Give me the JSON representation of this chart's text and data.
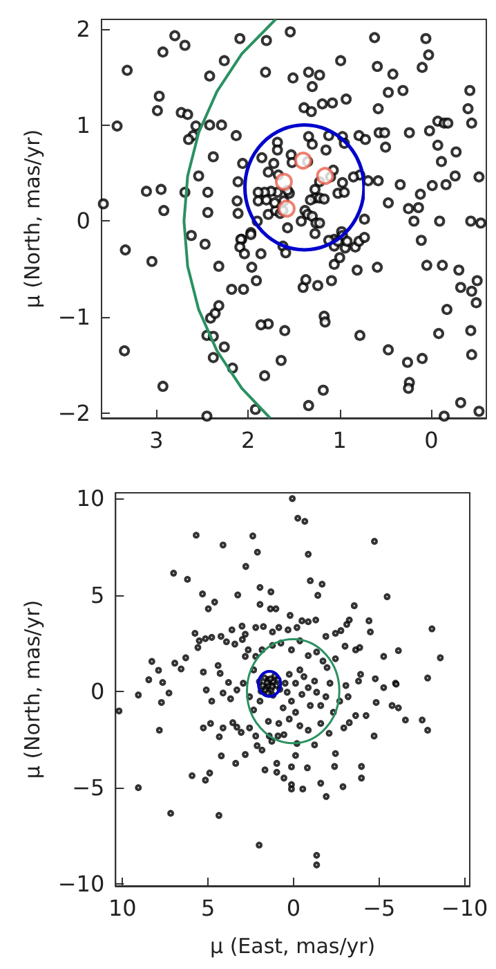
{
  "chart_data": [
    {
      "type": "scatter",
      "ylabel": "μ (North, mas/yr)",
      "xlim": [
        3.6,
        -0.6
      ],
      "ylim": [
        -2.05,
        2.1
      ],
      "xticks": [
        3,
        2,
        1,
        0
      ],
      "yticks": [
        -2,
        -1,
        0,
        1,
        2
      ],
      "grid": false,
      "marker": "circle",
      "series": [
        {
          "color": "#000000",
          "x": [
            2.8,
            2.93,
            2.69,
            3.32,
            2.09,
            1.8,
            1.54,
            0.62,
            0.06,
            0.03,
            0.1,
            0.99,
            2.26,
            2.42,
            1.81,
            1.51,
            1.34,
            1.22,
            1.3,
            0.59,
            0.42,
            0.31,
            0.47,
            0.58,
            0.93,
            1.08,
            1.19,
            1.39,
            1.31,
            -0.42,
            -0.4,
            2.97,
            2.99,
            2.73,
            2.66,
            2.29,
            2.42,
            2.57,
            2.6,
            2.65,
            3.43,
            2.13,
            2.38,
            2.54,
            3.11,
            2.95,
            2.69,
            2.92,
            2.44,
            2.44,
            3.58,
            2.06,
            2.11,
            2.12,
            2.11,
            1.85,
            1.68,
            1.68,
            1.72,
            1.78,
            1.67,
            1.53,
            1.52,
            1.35,
            1.34,
            1.3,
            1.15,
            1.12,
            0.97,
            0.95,
            0.79,
            0.72,
            0.57,
            0.51,
            0.5,
            0.24,
            0.02,
            -0.07,
            -0.14,
            -0.18,
            -0.44,
            -0.07,
            -0.27,
            -0.11,
            -0.01,
            -0.16,
            -0.26,
            -0.52,
            0.12,
            0.34,
            0.58,
            0.47,
            0.25,
            0.14,
            0.19,
            -0.09,
            -0.43,
            -0.54,
            0.73,
            0.69,
            0.78,
            0.85,
            0.97,
            1.02,
            0.95,
            1.07,
            1.1,
            1.22,
            1.27,
            1.27,
            1.22,
            1.17,
            1.32,
            1.38,
            1.35,
            1.3,
            1.26,
            1.22,
            1.42,
            1.57,
            1.78,
            1.7,
            1.65,
            1.62,
            1.55,
            1.57,
            1.68,
            1.75,
            1.82,
            1.89,
            1.89,
            1.8,
            1.71,
            1.61,
            1.9,
            1.97,
            0.98,
            0.97,
            1.06,
            1.12,
            2.07,
            2.62,
            2.47,
            2.08,
            2.09,
            2.04,
            1.97,
            1.86,
            1.62,
            1.59,
            1.27,
            1.06,
            1.02,
            0.94,
            0.92,
            0.83,
            0.79,
            0.73,
            1.06,
            1.0,
            0.81,
            0.59,
            0.11,
            0.05,
            -0.12,
            -0.3,
            -0.32,
            -0.44,
            -0.5,
            -0.49,
            -0.17,
            -0.08,
            -0.43,
            -0.44,
            0.1,
            0.26,
            0.24,
            0.25,
            0.47,
            0.78,
            -0.14,
            -0.32,
            -0.52,
            1.18,
            1.34,
            1.17,
            1.16,
            1.6,
            1.64,
            1.78,
            1.86,
            1.82,
            1.92,
            2.45,
            2.17,
            2.26,
            2.38,
            2.45,
            2.38,
            2.41,
            2.36,
            2.32,
            2.18,
            2.05,
            1.91,
            1.96,
            2.32,
            1.4,
            1.37,
            1.24,
            1.09,
            3.34,
            3.05,
            3.35,
            2.93
          ],
          "values": [
            1.93,
            1.76,
            1.83,
            1.57,
            1.9,
            1.88,
            1.97,
            1.91,
            1.9,
            1.73,
            1.6,
            1.67,
            1.67,
            1.51,
            1.55,
            1.49,
            1.55,
            1.52,
            1.4,
            1.61,
            1.53,
            1.36,
            1.34,
            1.17,
            1.27,
            1.23,
            1.22,
            1.18,
            1.14,
            1.36,
            1.17,
            1.3,
            1.15,
            1.13,
            1.11,
            1.0,
            1.0,
            0.99,
            0.89,
            0.85,
            0.99,
            0.89,
            0.67,
            0.47,
            0.31,
            0.33,
            0.3,
            0.11,
            0.3,
            0.09,
            0.18,
            0.6,
            0.41,
            0.21,
            0.08,
            0.66,
            0.82,
            0.74,
            0.6,
            0.51,
            0.48,
            0.69,
            0.61,
            0.62,
            0.88,
            0.8,
            0.74,
            0.89,
            0.88,
            0.81,
            0.89,
            0.85,
            0.92,
            0.92,
            0.77,
            0.92,
            0.94,
            1.04,
            1.02,
            1.02,
            1.02,
            0.79,
            0.72,
            0.62,
            0.37,
            0.38,
            0.47,
            0.46,
            0.28,
            0.38,
            0.42,
            0.19,
            0.13,
            0.14,
            0.0,
            0.0,
            0.0,
            -0.02,
            0.02,
            0.42,
            0.48,
            0.46,
            0.4,
            0.29,
            0.3,
            0.53,
            0.46,
            0.41,
            0.33,
            0.24,
            0.24,
            0.23,
            0.22,
            0.11,
            0.07,
            0.05,
            -0.02,
            -0.02,
            0.0,
            -0.07,
            0.07,
            0.11,
            0.08,
            0.11,
            0.29,
            0.32,
            0.3,
            0.31,
            0.3,
            0.3,
            0.21,
            0.22,
            0.19,
            0.21,
            0.0,
            -0.12,
            -0.11,
            -0.15,
            -0.19,
            -0.2,
            -0.19,
            -0.15,
            -0.24,
            -0.19,
            -0.27,
            -0.34,
            -0.14,
            -0.34,
            -0.26,
            -0.33,
            -0.13,
            -0.26,
            -0.21,
            -0.28,
            -0.21,
            -0.27,
            -0.21,
            -0.17,
            -0.45,
            -0.38,
            -0.51,
            -0.48,
            -0.2,
            -0.46,
            -0.46,
            -0.51,
            -0.69,
            -0.73,
            -0.62,
            -0.85,
            -0.92,
            -1.17,
            -1.14,
            -1.39,
            -1.43,
            -1.47,
            -1.68,
            -1.74,
            -1.34,
            -1.19,
            -2.03,
            -1.89,
            -1.98,
            -1.76,
            -1.92,
            -0.99,
            -1.05,
            -1.14,
            -1.45,
            -1.07,
            -1.08,
            -1.61,
            -1.96,
            -2.03,
            -1.53,
            -1.31,
            -1.42,
            -1.19,
            -1.2,
            -1.01,
            -0.96,
            -0.88,
            -0.71,
            -0.71,
            -0.62,
            -0.48,
            -0.47,
            -0.69,
            -0.61,
            -0.67,
            -0.62,
            -0.3,
            -0.42,
            -1.35,
            -1.72
          ]
        },
        {
          "color": "#e8604c",
          "x": [
            1.4,
            1.16,
            1.61,
            1.58
          ],
          "values": [
            0.63,
            0.47,
            0.41,
            0.13
          ]
        },
        {
          "type": "line",
          "color": "#2a9160",
          "marker": "none",
          "x": [
            1.7,
            2.07,
            2.34,
            2.54,
            2.66,
            2.7,
            2.66,
            2.54,
            2.34,
            2.07,
            1.76
          ],
          "values": [
            2.1,
            1.74,
            1.35,
            0.92,
            0.47,
            0,
            -0.47,
            -0.92,
            -1.35,
            -1.74,
            -2.05
          ]
        }
      ]
    },
    {
      "type": "scatter",
      "xlabel": "μ (East, mas/yr)",
      "ylabel": "μ (North, mas/yr)",
      "xlim": [
        10.4,
        -10.3
      ],
      "ylim": [
        -10.1,
        10.3
      ],
      "xticks": [
        10,
        5,
        0,
        -5,
        -10
      ],
      "yticks": [
        -10,
        -5,
        0,
        5,
        10
      ],
      "grid": false,
      "marker": "circle",
      "series": [
        {
          "color": "#000000",
          "x": [
            0.07,
            -0.25,
            -0.66,
            5.69,
            2.38,
            -4.73,
            4.12,
            2.11,
            -0.86,
            2.79,
            7.01,
            6.2,
            -0.98,
            -1.67,
            1.96,
            5.32,
            3.26,
            1.32,
            -1.42,
            -5.47,
            4.61,
            4.98,
            1.96,
            1.35,
            1.03,
            -3.55,
            -8.09,
            -8.58,
            8.28,
            7.89,
            9.07,
            8.46,
            7.65,
            7.28,
            7.72,
            10.2,
            6.94,
            6.57,
            6.3,
            5.59,
            5.51,
            5.76,
            5.15,
            4.78,
            4.24,
            3.92,
            3.6,
            3.43,
            2.99,
            3.01,
            2.82,
            2.21,
            1.76,
            1.23,
            0.86,
            0.32,
            -0.2,
            -0.49,
            -0.86,
            -1.3,
            0.2,
            -1.89,
            -2.45,
            -2.77,
            -3.26,
            -3.11,
            -4.41,
            -4.49,
            -3.63,
            -3.87,
            -3.01,
            -2.45,
            -5.27,
            -6.13,
            -5.96,
            -4.78,
            -5.27,
            -6.0,
            -5.76,
            -4.83,
            -6.13,
            -7.84,
            -3.8,
            -3.92,
            -3.06,
            -3.19,
            -2.7,
            5.27,
            4.41,
            4.29,
            3.8,
            3.68,
            3.31,
            4.12,
            5.1,
            4.78,
            2.82,
            2.65,
            2.21,
            1.84,
            1.23,
            0.74,
            0.12,
            -0.37,
            -0.86,
            -1.35,
            -1.72,
            -1.96,
            -2.13,
            -1.89,
            -1.59,
            -2.33,
            2.33,
            2.94,
            2.57,
            2.33,
            1.96,
            -0.37,
            -0.61,
            -0.12,
            -0.49,
            -0.86,
            -1.23,
            -1.35,
            -0.98,
            0.12,
            0.37,
            -0.12,
            0.61,
            0.25,
            0.49,
            1.4,
            1.6,
            1.2,
            1.5,
            1.8,
            1.3,
            1.0,
            1.7,
            1.1,
            1.9,
            1.45,
            1.25,
            1.55,
            1.35,
            1.65,
            0.9,
            2.0,
            1.2,
            1.5,
            0.8,
            7.84,
            9.07,
            7.18,
            4.36,
            2.01,
            -1.35,
            -1.35,
            5.93,
            5.15,
            4.9,
            4.22,
            3.38,
            2.82,
            1.67,
            0.98,
            0.98,
            0.56,
            0.12,
            0.12,
            0.12,
            -0.54,
            -0.81,
            -0.12,
            -1.59,
            -1.91,
            -2.4,
            -2.45,
            -2.89,
            -3.97,
            -3.97,
            -4.71,
            -6.54,
            -7.52,
            -7.84,
            5.27,
            4.85,
            4.12,
            3.55,
            3.06,
            2.57,
            2.21,
            2.13,
            1.84,
            1.42,
            1.27,
            0.91,
            0.56,
            -0.2,
            -1.23,
            -2.08,
            -2.94,
            -3.26,
            -3.63,
            -4.24,
            4.34,
            3.31,
            0.86,
            -0.37,
            -1.59,
            -0.86,
            0.25,
            1.47
          ],
          "values": [
            10.0,
            8.98,
            8.82,
            8.1,
            8.06,
            7.78,
            7.59,
            7.22,
            7.11,
            6.48,
            6.13,
            5.81,
            5.74,
            5.56,
            5.39,
            5.05,
            5.0,
            5.16,
            4.98,
            4.91,
            4.63,
            4.28,
            4.51,
            4.28,
            4.28,
            4.44,
            3.24,
            1.74,
            1.55,
            1.09,
            -0.19,
            0.6,
            0.46,
            -0.09,
            -0.58,
            -1.02,
            1.46,
            1.16,
            1.74,
            2.27,
            2.62,
            3.01,
            2.73,
            2.8,
            2.85,
            2.57,
            3.19,
            2.45,
            2.69,
            3.38,
            2.96,
            3.31,
            3.36,
            3.08,
            3.31,
            3.19,
            3.31,
            3.66,
            3.61,
            3.7,
            3.94,
            2.85,
            3.01,
            3.15,
            3.7,
            3.47,
            3.66,
            3.08,
            2.15,
            2.27,
            2.34,
            1.69,
            1.81,
            2.11,
            0.42,
            0.65,
            0.19,
            0.37,
            -0.74,
            -0.58,
            -0.86,
            0.69,
            0.53,
            0.88,
            0.3,
            -0.28,
            -0.51,
            1.0,
            1.34,
            0.93,
            0.46,
            -0.39,
            0.07,
            -0.09,
            0.07,
            -0.51,
            1.81,
            2.15,
            1.81,
            2.15,
            2.38,
            2.5,
            2.15,
            2.62,
            1.85,
            2.04,
            1.57,
            1.23,
            0.42,
            -0.28,
            -0.74,
            -1.09,
            1.11,
            0.42,
            -0.28,
            -0.97,
            -0.51,
            1.11,
            0.76,
            0.42,
            -0.16,
            0.19,
            0.53,
            -0.05,
            -0.74,
            -0.51,
            -0.05,
            -1.09,
            -0.86,
            0.88,
            0.42,
            0.4,
            0.2,
            0.5,
            0.6,
            0.3,
            0.1,
            0.3,
            0.7,
            0.8,
            0.0,
            0.3,
            0.25,
            0.45,
            0.65,
            0.05,
            0.6,
            0.5,
            -0.2,
            -0.1,
            0.1,
            -2.02,
            -5.0,
            -6.33,
            -6.44,
            -7.98,
            -8.51,
            -9.01,
            -4.38,
            -4.61,
            -4.24,
            -3.35,
            -3.74,
            -3.28,
            -4.08,
            -3.74,
            -4.2,
            -4.5,
            -3.92,
            -4.84,
            -5.07,
            -5.07,
            -3.97,
            -3.33,
            -4.77,
            -5.46,
            -3.9,
            -3.23,
            -4.95,
            -3.9,
            -4.5,
            -2.32,
            -1.49,
            -1.49,
            -2.02,
            -1.9,
            -1.67,
            -1.9,
            -1.63,
            -2.13,
            -1.9,
            -2.32,
            -2.82,
            -3.05,
            -2.32,
            -2.59,
            -2.32,
            -2.25,
            -2.71,
            -2.78,
            -2.18,
            -1.9,
            -1.63,
            -1.26,
            -1.26,
            -2.36,
            -1.86,
            -1.67,
            -1.79,
            -1.67,
            -2.02,
            -1.44,
            -1.56
          ]
        }
      ]
    }
  ]
}
